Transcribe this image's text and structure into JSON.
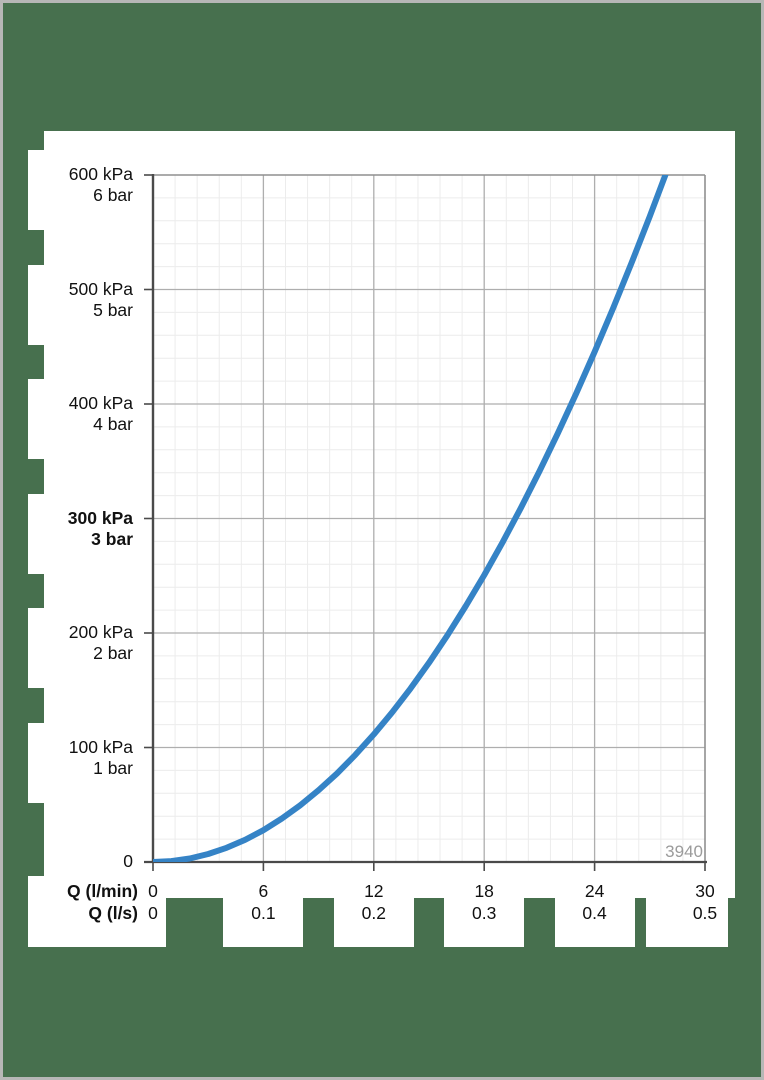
{
  "window": {
    "background_color": "#47704E",
    "frame_border_color": "#b7b7b6",
    "panel_color": "#ffffff"
  },
  "chart_data": {
    "type": "line",
    "title": "",
    "x_axis": {
      "primary_label": "Q (l/min)",
      "secondary_label": "Q (l/s)",
      "min": 0,
      "max": 30,
      "major_step": 6,
      "minor_step": 1.2,
      "ticks": [
        {
          "lmin": "0",
          "ls": "0",
          "value": 0
        },
        {
          "lmin": "6",
          "ls": "0.1",
          "value": 6
        },
        {
          "lmin": "12",
          "ls": "0.2",
          "value": 12
        },
        {
          "lmin": "18",
          "ls": "0.3",
          "value": 18
        },
        {
          "lmin": "24",
          "ls": "0.4",
          "value": 24
        },
        {
          "lmin": "30",
          "ls": "0.5",
          "value": 30
        }
      ]
    },
    "y_axis": {
      "unit_primary": "kPa",
      "unit_secondary": "bar",
      "min": 0,
      "max": 600,
      "major_step": 100,
      "minor_step": 20,
      "ticks": [
        {
          "kpa": "600 kPa",
          "bar": "6 bar",
          "value": 600,
          "bold": false
        },
        {
          "kpa": "500 kPa",
          "bar": "5 bar",
          "value": 500,
          "bold": false
        },
        {
          "kpa": "400 kPa",
          "bar": "4 bar",
          "value": 400,
          "bold": false
        },
        {
          "kpa": "300 kPa",
          "bar": "3 bar",
          "value": 300,
          "bold": true
        },
        {
          "kpa": "200 kPa",
          "bar": "2 bar",
          "value": 200,
          "bold": false
        },
        {
          "kpa": "100 kPa",
          "bar": "1 bar",
          "value": 100,
          "bold": false
        },
        {
          "kpa": "0",
          "bar": "",
          "value": 0,
          "bold": false
        }
      ]
    },
    "series": [
      {
        "name": "pressure-drop-vs-flow",
        "color": "#3583C6",
        "points": [
          [
            0,
            0
          ],
          [
            1,
            0.8
          ],
          [
            2,
            3.1
          ],
          [
            3,
            7.0
          ],
          [
            4,
            12.4
          ],
          [
            5,
            19.3
          ],
          [
            6,
            27.8
          ],
          [
            7,
            37.9
          ],
          [
            8,
            49.5
          ],
          [
            9,
            62.7
          ],
          [
            10,
            77.3
          ],
          [
            11,
            93.6
          ],
          [
            12,
            111.4
          ],
          [
            13,
            130.7
          ],
          [
            14,
            151.6
          ],
          [
            15,
            174.0
          ],
          [
            16,
            198.0
          ],
          [
            17,
            223.6
          ],
          [
            18,
            250.6
          ],
          [
            19,
            279.2
          ],
          [
            20,
            309.4
          ],
          [
            21,
            341.1
          ],
          [
            22,
            374.4
          ],
          [
            23,
            409.2
          ],
          [
            24,
            445.5
          ],
          [
            25,
            483.4
          ],
          [
            26,
            522.9
          ],
          [
            27,
            563.9
          ],
          [
            27.85,
            600
          ]
        ]
      }
    ],
    "annotation": {
      "text": "3940",
      "color": "#9b9b9b"
    },
    "grid": {
      "on": true,
      "minor_color": "#ececec",
      "major_color": "#aeaeae",
      "frame_color": "#8f8f8f",
      "axis_color": "#4a4a4a"
    }
  }
}
